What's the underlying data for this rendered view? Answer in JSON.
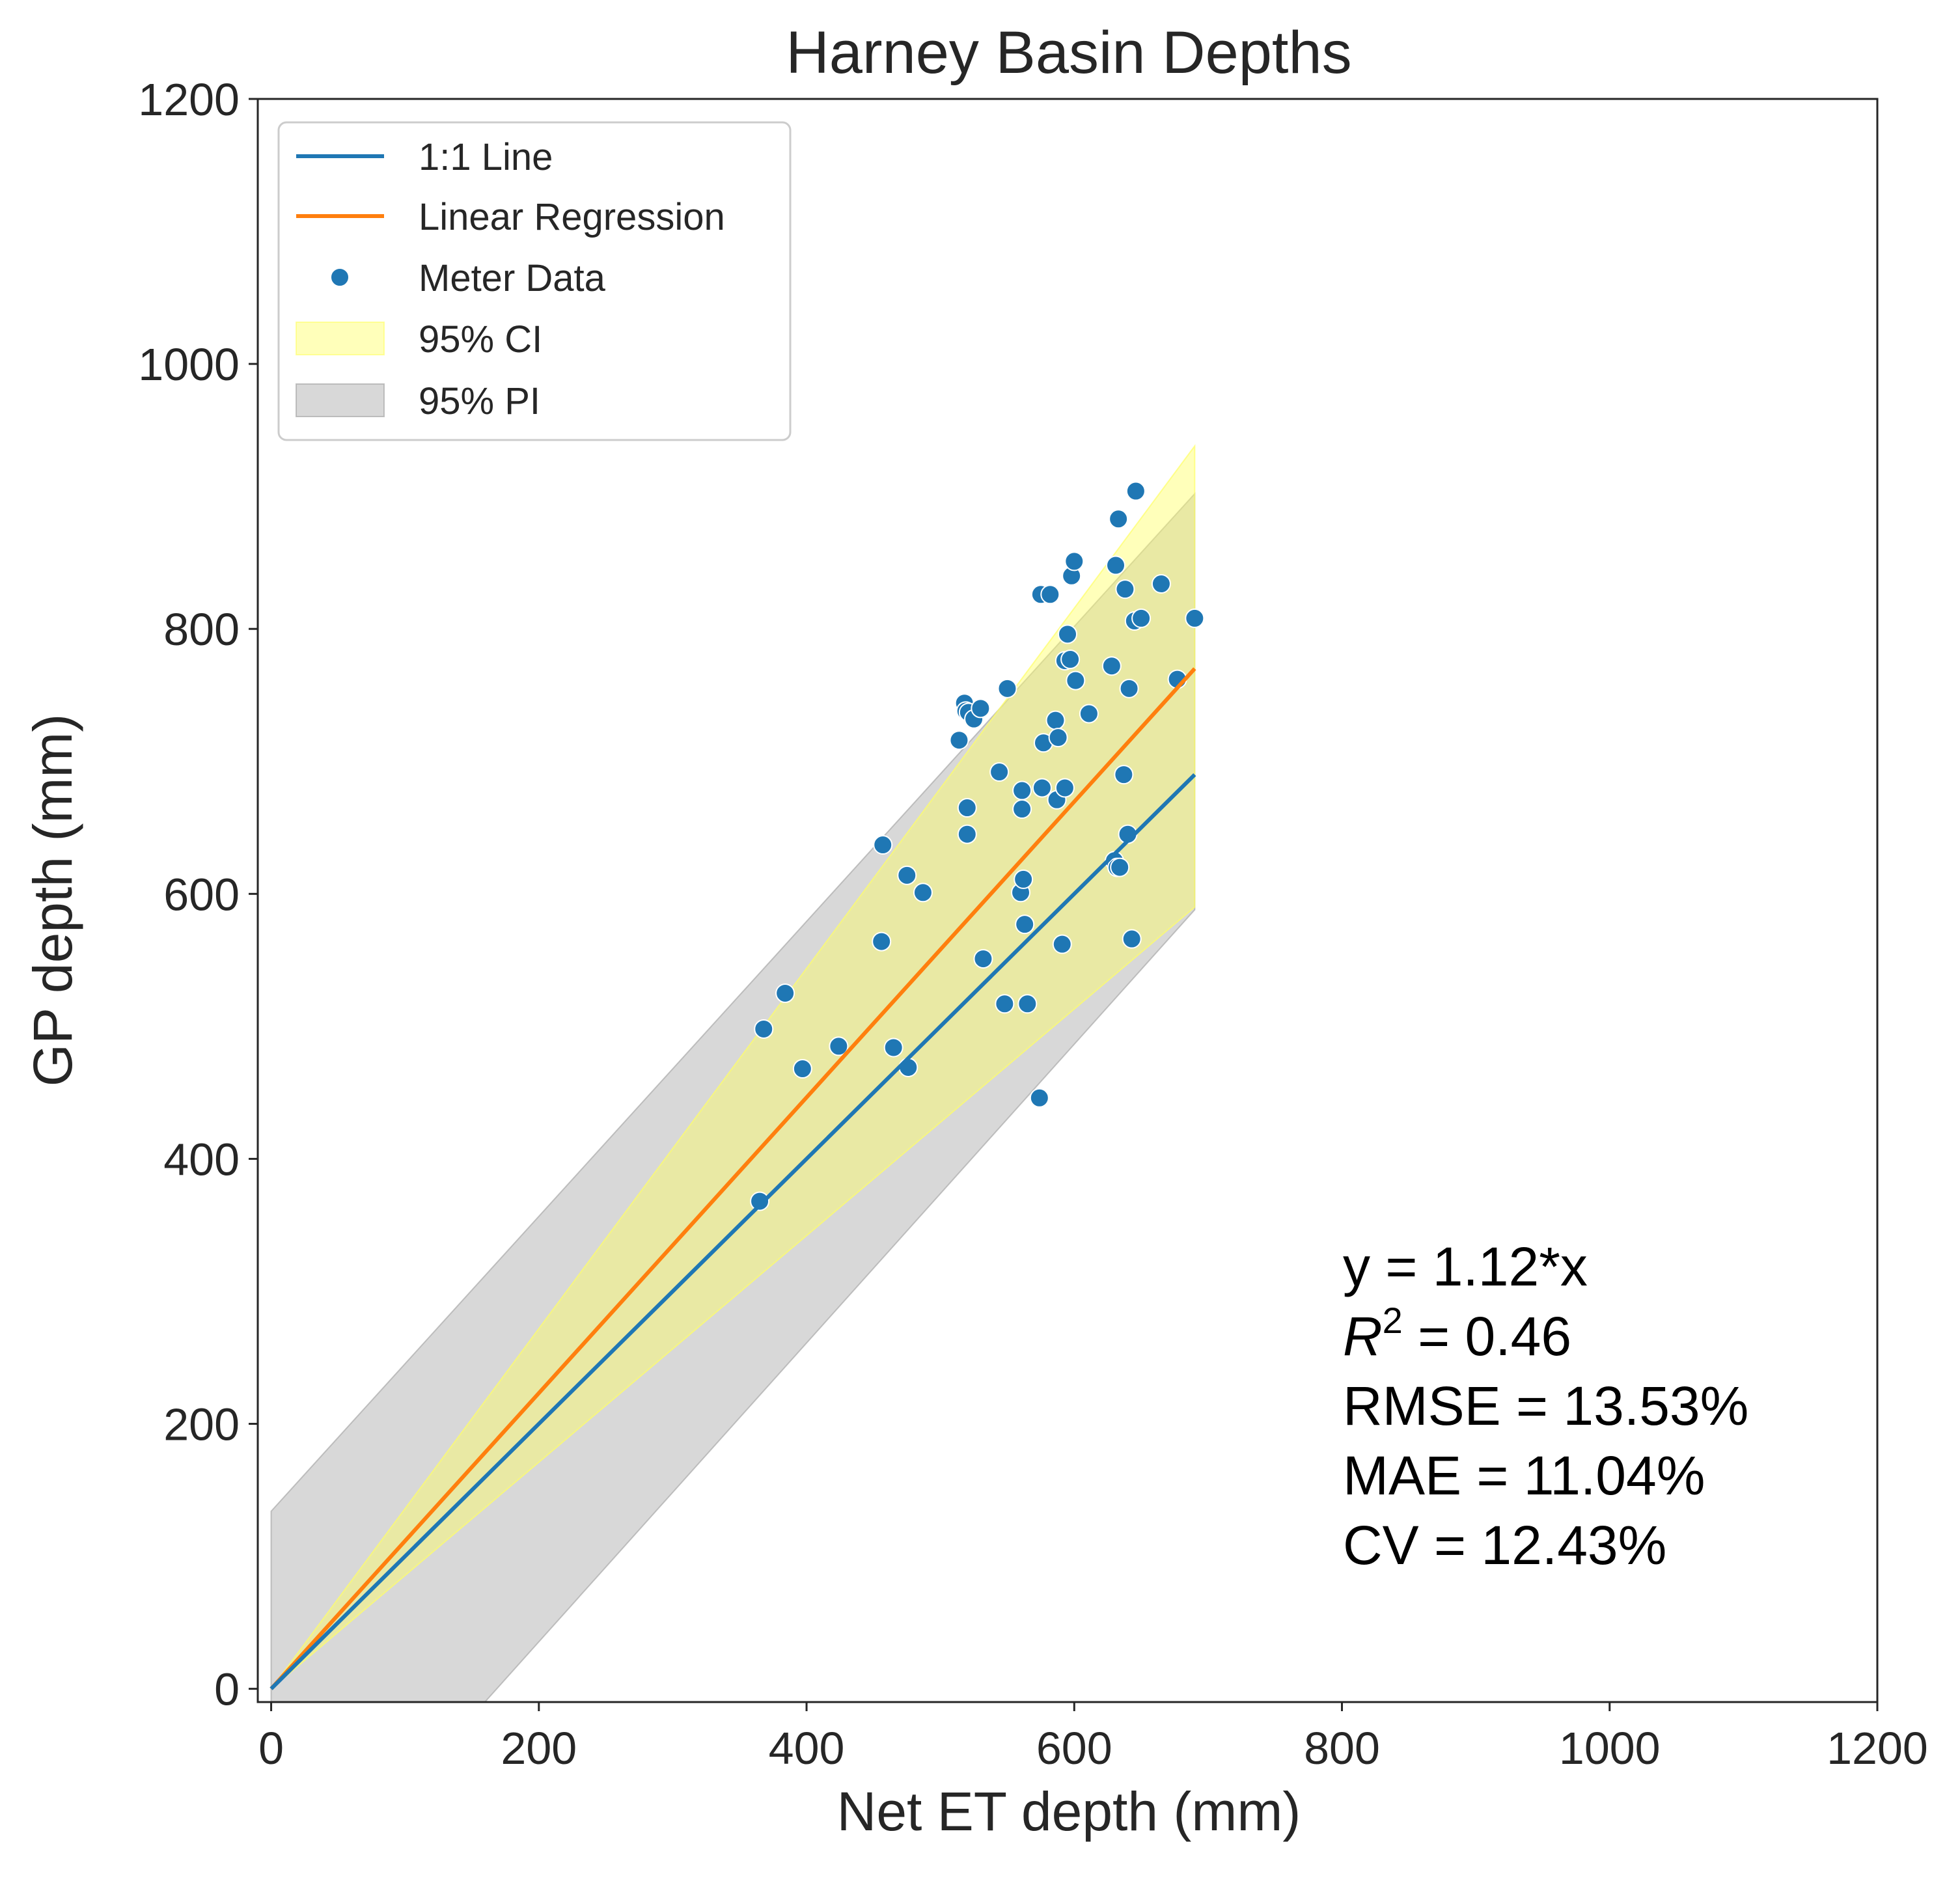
{
  "chart_data": {
    "type": "scatter",
    "title": "Harney Basin Depths",
    "xlabel": "Net ET depth (mm)",
    "ylabel": "GP depth (mm)",
    "xlim": [
      -10,
      1200
    ],
    "ylim": [
      -10,
      1200
    ],
    "xticks": [
      0,
      200,
      400,
      600,
      800,
      1000,
      1200
    ],
    "yticks": [
      0,
      200,
      400,
      600,
      800,
      1000,
      1200
    ],
    "grid": false,
    "legend_position": "top-left",
    "series": [
      {
        "name": "1:1 Line",
        "kind": "line",
        "color": "#1f77b4",
        "x": [
          0,
          690
        ],
        "y": [
          0,
          690
        ]
      },
      {
        "name": "Linear Regression",
        "kind": "line",
        "color": "#ff7f0e",
        "x": [
          0,
          690
        ],
        "y": [
          0,
          770
        ]
      },
      {
        "name": "Meter Data",
        "kind": "scatter",
        "color": "#1f77b4",
        "x": [
          365,
          368,
          384,
          397,
          424,
          456,
          457,
          465,
          475,
          476,
          487,
          514,
          518,
          519,
          520,
          520,
          521,
          525,
          530,
          532,
          544,
          548,
          550,
          560,
          561,
          561,
          562,
          563,
          565,
          574,
          575,
          576,
          577,
          582,
          586,
          587,
          588,
          591,
          593,
          593,
          595,
          597,
          598,
          600,
          601,
          611,
          628,
          630,
          631,
          632,
          633,
          634,
          637,
          638,
          640,
          641,
          643,
          645,
          646,
          650,
          665,
          677,
          690
        ],
        "y": [
          368,
          498,
          525,
          468,
          485,
          564,
          637,
          484,
          614,
          469,
          601,
          716,
          744,
          738,
          665,
          645,
          737,
          732,
          740,
          551,
          692,
          517,
          755,
          601,
          664,
          678,
          611,
          577,
          517,
          446,
          826,
          680,
          714,
          826,
          731,
          671,
          718,
          562,
          776,
          680,
          796,
          777,
          840,
          851,
          761,
          736,
          772,
          625,
          848,
          620,
          883,
          620,
          690,
          830,
          645,
          755,
          566,
          806,
          904,
          808,
          834,
          762,
          808
        ]
      }
    ],
    "bands": [
      {
        "name": "95% CI",
        "color": "#ffff66",
        "opacity": 0.45,
        "x": [
          0,
          690
        ],
        "lower": [
          0,
          590
        ],
        "upper": [
          0,
          938
        ]
      },
      {
        "name": "95% PI",
        "color": "#a9a9a9",
        "opacity": 0.45,
        "x": [
          0,
          690
        ],
        "lower": [
          -190,
          588
        ],
        "upper": [
          134,
          902
        ]
      }
    ],
    "annotation": {
      "lines": [
        "y = 1.12*x",
        "R",
        "2",
        " = 0.46",
        "RMSE = 13.53%",
        "MAE = 11.04%",
        "CV = 12.43%"
      ],
      "position_data": [
        800,
        320
      ]
    }
  }
}
